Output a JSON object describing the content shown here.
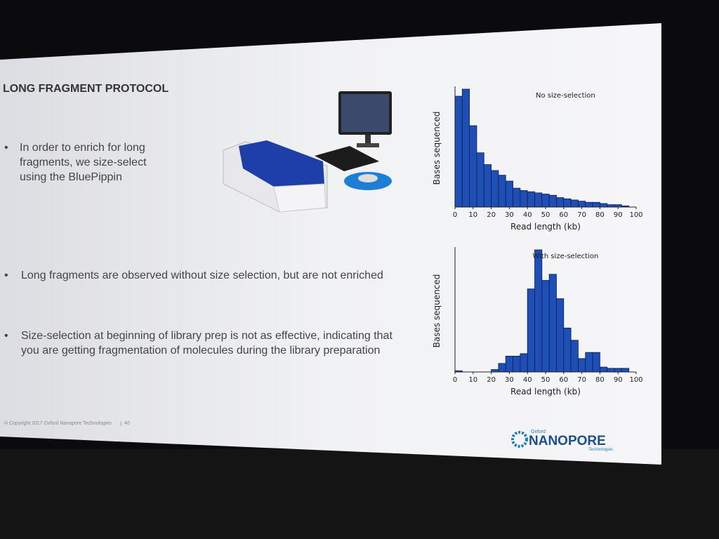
{
  "slide": {
    "title": "LONG FRAGMENT PROTOCOL",
    "bullets": [
      "In order to enrich for long fragments, we size-select using the BluePippin",
      "Long fragments are observed without size selection, but are not enriched",
      "Size-selection at beginning of library prep is not as effective, indicating that you are getting fragmentation of molecules during the library preparation"
    ],
    "footer": "© Copyright 2017 Oxford Nanopore Technologies",
    "page_number": "46",
    "logo": {
      "top": "Oxford",
      "name": "NANOPORE",
      "bottom": "Technologies"
    }
  },
  "chart_data": [
    {
      "type": "histogram",
      "annotation": "No size-selection",
      "y_label": "Bases sequenced",
      "x_label": "Read length (kb)",
      "color": "#1f4fb5",
      "bins": [
        0,
        4,
        8,
        12,
        16,
        20,
        24,
        28,
        32,
        36,
        40,
        44,
        48,
        52,
        56,
        60,
        64,
        68,
        72,
        76,
        80,
        84,
        88,
        92,
        96,
        100
      ],
      "values": [
        94,
        100,
        69,
        46,
        36,
        31,
        27,
        22,
        16,
        14,
        13,
        12,
        11,
        10,
        8,
        7,
        6,
        5,
        4,
        4,
        3,
        2,
        2,
        1,
        0
      ],
      "xlim": [
        0,
        100
      ],
      "ylim": [
        0,
        100
      ],
      "xticks": [
        0,
        10,
        20,
        30,
        40,
        50,
        60,
        70,
        80,
        90,
        100
      ]
    },
    {
      "type": "histogram",
      "annotation": "With size-selection",
      "y_label": "Bases sequenced",
      "x_label": "Read length (kb)",
      "color": "#1f4fb5",
      "bins": [
        0,
        4,
        8,
        12,
        16,
        20,
        24,
        28,
        32,
        36,
        40,
        44,
        48,
        52,
        56,
        60,
        64,
        68,
        72,
        76,
        80,
        84,
        88,
        92,
        96,
        100
      ],
      "values": [
        1,
        0,
        0,
        0,
        0,
        2,
        7,
        13,
        13,
        15,
        68,
        100,
        75,
        80,
        60,
        36,
        26,
        11,
        16,
        16,
        4,
        3,
        3,
        3,
        0
      ],
      "xlim": [
        0,
        100
      ],
      "ylim": [
        0,
        100
      ],
      "xticks": [
        0,
        10,
        20,
        30,
        40,
        50,
        60,
        70,
        80,
        90,
        100
      ]
    }
  ]
}
